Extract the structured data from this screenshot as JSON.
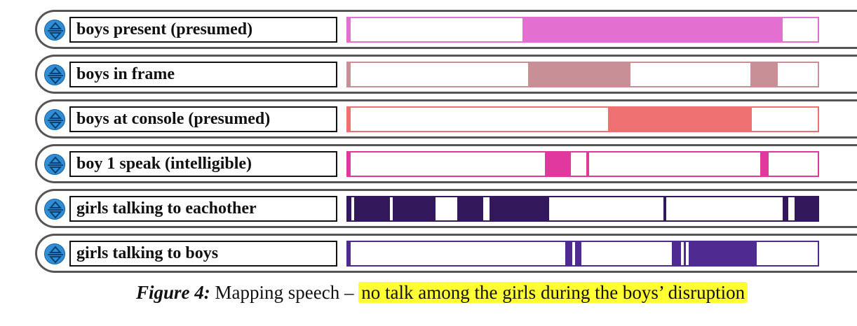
{
  "tracks": [
    {
      "label": "boys present (presumed)",
      "color": "#e36fd0",
      "segments": [
        [
          0.372,
          0.925
        ]
      ],
      "marks": []
    },
    {
      "label": "boys in frame",
      "color": "#c98f97",
      "segments": [
        [
          0.383,
          0.602
        ],
        [
          0.856,
          0.915
        ]
      ],
      "marks": []
    },
    {
      "label": "boys at console (presumed)",
      "color": "#ef7070",
      "segments": [
        [
          0.553,
          0.86
        ]
      ],
      "marks": []
    },
    {
      "label": "boy 1 speak (intelligible)",
      "color": "#e0389c",
      "segments": [
        [
          0.419,
          0.475
        ],
        [
          0.878,
          0.896
        ]
      ],
      "marks": [
        0.508
      ]
    },
    {
      "label": "girls talking to eachother",
      "color": "#33185c",
      "segments": [
        [
          0.0,
          0.089
        ],
        [
          0.095,
          0.187
        ],
        [
          0.233,
          0.288
        ],
        [
          0.301,
          0.429
        ],
        [
          0.925,
          0.937
        ],
        [
          0.95,
          1.0
        ]
      ],
      "marks": [
        0.008,
        0.672
      ]
    },
    {
      "label": "girls talking to boys",
      "color": "#4f2a90",
      "segments": [
        [
          0.462,
          0.497
        ],
        [
          0.69,
          0.87
        ]
      ],
      "marks": [
        0.478,
        0.709,
        0.72
      ]
    }
  ],
  "caption": {
    "figure_label": "Figure 4",
    "colon": ":",
    "text": " Mapping speech – ",
    "highlight": "no talk among the girls during the boys’ disruption"
  },
  "icons": {
    "toggle": "expand-collapse-arrows-icon"
  }
}
